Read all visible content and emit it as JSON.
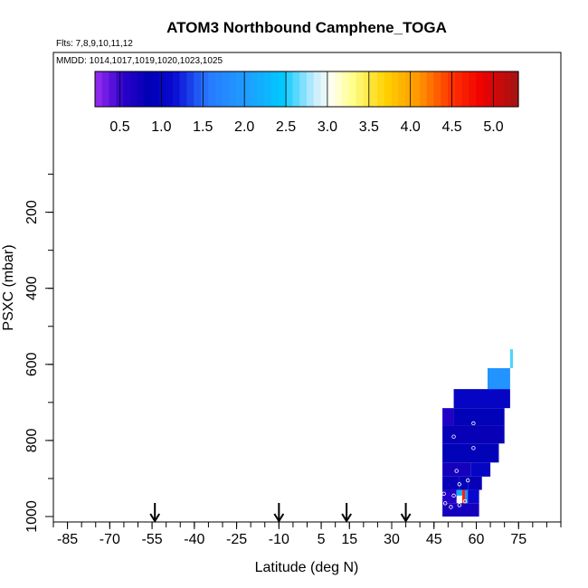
{
  "chart_data": {
    "type": "heatmap",
    "title": "ATOM3 Northbound Camphene_TOGA",
    "annotations": {
      "flights": "Flts: 7,8,9,10,11,12",
      "dates": "MMDD: 1014,1017,1019,1020,1023,1025"
    },
    "xlabel": "Latitude (deg N)",
    "ylabel": "PSXC (mbar)",
    "xlim": [
      -90,
      90
    ],
    "ylim": [
      1015,
      0
    ],
    "x_ticks": [
      -85,
      -70,
      -55,
      -40,
      -25,
      -10,
      5,
      15,
      30,
      45,
      60,
      75
    ],
    "y_ticks": [
      200,
      400,
      600,
      800,
      1000
    ],
    "colorbar": {
      "ticks": [
        0.5,
        1.0,
        1.5,
        2.0,
        2.5,
        3.0,
        3.5,
        4.0,
        4.5,
        5.0
      ],
      "tick_labels": [
        "0.5",
        "1.0",
        "1.5",
        "2.0",
        "2.5",
        "3.0",
        "3.5",
        "4.0",
        "4.5",
        "5.0"
      ],
      "range": [
        0.2,
        5.3
      ],
      "placement": "top inside plot"
    },
    "arrows_latitude": [
      -54,
      -10,
      14,
      35
    ],
    "cells": [
      {
        "lat": [
          72,
          73
        ],
        "p": [
          560,
          610
        ],
        "value": 2.6
      },
      {
        "lat": [
          64,
          72
        ],
        "p": [
          610,
          665
        ],
        "value": 1.9
      },
      {
        "lat": [
          52,
          72
        ],
        "p": [
          665,
          715
        ],
        "value": 1.0
      },
      {
        "lat": [
          48,
          52
        ],
        "p": [
          715,
          760
        ],
        "value": 0.6
      },
      {
        "lat": [
          52,
          70
        ],
        "p": [
          715,
          760
        ],
        "value": 0.9
      },
      {
        "lat": [
          48,
          70
        ],
        "p": [
          760,
          808
        ],
        "value": 0.8
      },
      {
        "lat": [
          48,
          68
        ],
        "p": [
          808,
          858
        ],
        "value": 0.9
      },
      {
        "lat": [
          48,
          58
        ],
        "p": [
          858,
          895
        ],
        "value": 0.7
      },
      {
        "lat": [
          58,
          65
        ],
        "p": [
          858,
          895
        ],
        "value": 1.0
      },
      {
        "lat": [
          48,
          54
        ],
        "p": [
          895,
          930
        ],
        "value": 0.8
      },
      {
        "lat": [
          54,
          57
        ],
        "p": [
          895,
          930
        ],
        "value": 0.9
      },
      {
        "lat": [
          57,
          62
        ],
        "p": [
          895,
          930
        ],
        "value": 0.8
      },
      {
        "lat": [
          48,
          53
        ],
        "p": [
          930,
          965
        ],
        "value": 0.6
      },
      {
        "lat": [
          53,
          55
        ],
        "p": [
          930,
          945
        ],
        "value": 2.2
      },
      {
        "lat": [
          55,
          56
        ],
        "p": [
          930,
          965
        ],
        "value": 4.6
      },
      {
        "lat": [
          56,
          57
        ],
        "p": [
          930,
          965
        ],
        "value": 1.8
      },
      {
        "lat": [
          57,
          61
        ],
        "p": [
          930,
          965
        ],
        "value": 1.1
      },
      {
        "lat": [
          48,
          61
        ],
        "p": [
          965,
          1000
        ],
        "value": 0.7
      }
    ],
    "points": [
      {
        "lat": 59,
        "p": 755
      },
      {
        "lat": 52,
        "p": 790
      },
      {
        "lat": 59,
        "p": 820
      },
      {
        "lat": 53,
        "p": 880
      },
      {
        "lat": 57,
        "p": 905
      },
      {
        "lat": 54,
        "p": 915
      },
      {
        "lat": 48.5,
        "p": 940
      },
      {
        "lat": 52,
        "p": 945
      },
      {
        "lat": 49,
        "p": 965
      },
      {
        "lat": 51,
        "p": 975
      },
      {
        "lat": 56,
        "p": 960
      },
      {
        "lat": 54,
        "p": 970
      }
    ]
  }
}
